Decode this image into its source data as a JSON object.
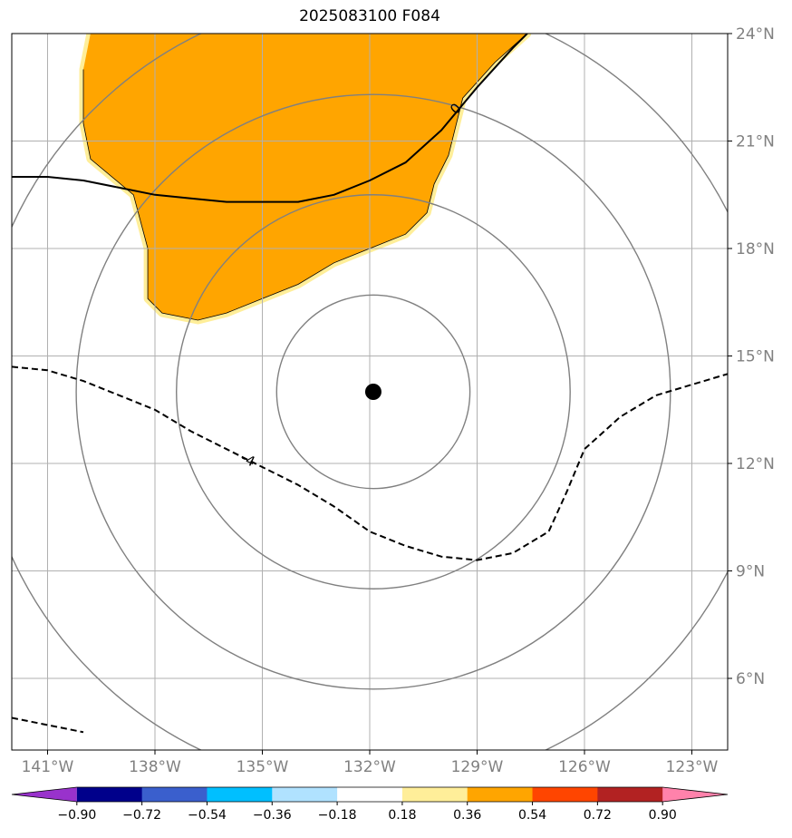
{
  "title": "2025083100 F084",
  "map": {
    "lon_range": [
      -142.0,
      -122.0
    ],
    "lat_range": [
      4.0,
      24.0
    ],
    "lon_ticks": [
      {
        "value": -141,
        "label": "141°W"
      },
      {
        "value": -138,
        "label": "138°W"
      },
      {
        "value": -135,
        "label": "135°W"
      },
      {
        "value": -132,
        "label": "132°W"
      },
      {
        "value": -129,
        "label": "129°W"
      },
      {
        "value": -126,
        "label": "126°W"
      },
      {
        "value": -123,
        "label": "123°W"
      }
    ],
    "lat_ticks": [
      {
        "value": 24,
        "label": "24°N"
      },
      {
        "value": 21,
        "label": "21°N"
      },
      {
        "value": 18,
        "label": "18°N"
      },
      {
        "value": 15,
        "label": "15°N"
      },
      {
        "value": 12,
        "label": "12°N"
      },
      {
        "value": 9,
        "label": "9°N"
      },
      {
        "value": 6,
        "label": "6°N"
      }
    ],
    "grid": true,
    "center": {
      "lon": -131.9,
      "lat": 14.0
    },
    "range_ring_radii_deg": [
      2.7,
      5.5,
      8.3,
      11.1
    ],
    "contours": [
      {
        "label": "0",
        "label_at": {
          "lon": -129.6,
          "lat": 21.9
        },
        "points": [
          [
            -142.0,
            20.0
          ],
          [
            -141.0,
            20.0
          ],
          [
            -140.0,
            19.9
          ],
          [
            -139.0,
            19.7
          ],
          [
            -138.0,
            19.5
          ],
          [
            -137.0,
            19.4
          ],
          [
            -136.0,
            19.3
          ],
          [
            -135.0,
            19.3
          ],
          [
            -134.0,
            19.3
          ],
          [
            -133.0,
            19.5
          ],
          [
            -132.0,
            19.9
          ],
          [
            -131.0,
            20.4
          ],
          [
            -130.0,
            21.3
          ],
          [
            -129.0,
            22.5
          ],
          [
            -128.0,
            23.6
          ],
          [
            -127.6,
            24.0
          ]
        ]
      },
      {
        "label": "-4",
        "label_at": {
          "lon": -135.4,
          "lat": 12.1
        },
        "points": [
          [
            -142.0,
            14.7
          ],
          [
            -141.0,
            14.6
          ],
          [
            -140.0,
            14.3
          ],
          [
            -139.0,
            13.9
          ],
          [
            -138.0,
            13.5
          ],
          [
            -137.0,
            12.9
          ],
          [
            -136.0,
            12.4
          ],
          [
            -135.0,
            11.9
          ],
          [
            -134.0,
            11.4
          ],
          [
            -133.0,
            10.8
          ],
          [
            -132.0,
            10.1
          ],
          [
            -131.0,
            9.7
          ],
          [
            -130.0,
            9.4
          ],
          [
            -129.0,
            9.3
          ],
          [
            -128.0,
            9.5
          ],
          [
            -127.0,
            10.1
          ],
          [
            -126.5,
            11.2
          ],
          [
            -126.0,
            12.4
          ],
          [
            -125.0,
            13.3
          ],
          [
            -124.0,
            13.9
          ],
          [
            -123.0,
            14.2
          ],
          [
            -122.0,
            14.5
          ]
        ]
      },
      {
        "label": "",
        "points": [
          [
            -142.0,
            4.9
          ],
          [
            -141.0,
            4.7
          ],
          [
            -140.0,
            4.5
          ]
        ]
      }
    ],
    "shaded_region": {
      "fill": "#FFA500",
      "edge": "#FFEE99",
      "points": [
        [
          -139.8,
          24.0
        ],
        [
          -127.6,
          24.0
        ],
        [
          -128.5,
          23.2
        ],
        [
          -129.4,
          22.2
        ],
        [
          -129.6,
          21.4
        ],
        [
          -129.8,
          20.6
        ],
        [
          -130.2,
          19.8
        ],
        [
          -130.4,
          19.0
        ],
        [
          -131.0,
          18.4
        ],
        [
          -132.0,
          18.0
        ],
        [
          -133.0,
          17.6
        ],
        [
          -134.0,
          17.0
        ],
        [
          -135.0,
          16.6
        ],
        [
          -136.0,
          16.2
        ],
        [
          -136.8,
          16.0
        ],
        [
          -137.8,
          16.2
        ],
        [
          -138.2,
          16.6
        ],
        [
          -138.2,
          18.0
        ],
        [
          -138.6,
          19.5
        ],
        [
          -139.8,
          20.5
        ],
        [
          -140.0,
          21.5
        ],
        [
          -140.0,
          23.0
        ]
      ]
    },
    "center_marker": {
      "color": "#000000"
    }
  },
  "colorbar": {
    "tick_labels": [
      "−0.90",
      "−0.72",
      "−0.54",
      "−0.36",
      "−0.18",
      "0.18",
      "0.36",
      "0.54",
      "0.72",
      "0.90"
    ],
    "colors": [
      "#9932CC",
      "#00008B",
      "#3A5FCD",
      "#00BFFF",
      "#B0E2FF",
      "#FFFFFF",
      "#FFEE99",
      "#FFA500",
      "#FF4500",
      "#B22222",
      "#FF82AB"
    ]
  }
}
